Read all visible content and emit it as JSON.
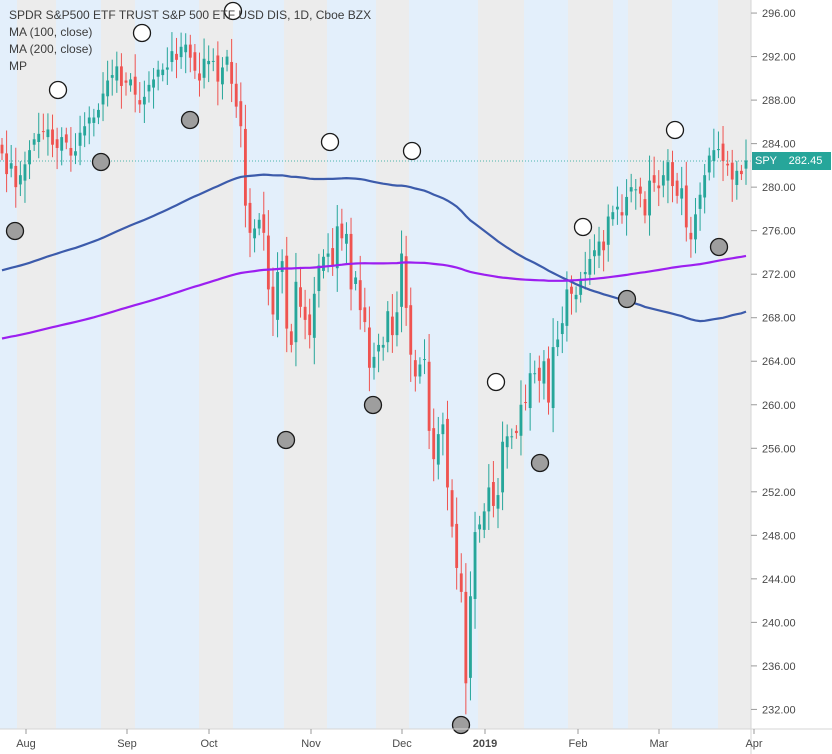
{
  "legend": {
    "title": "SPDR S&P500 ETF TRUST S&P 500 ETF USD DIS, 1D, Cboe BZX",
    "ma100": "MA (100, close)",
    "ma200": "MA (200, close)",
    "mp": "MP"
  },
  "price_tag": {
    "symbol": "SPY",
    "value": "282.45"
  },
  "colors": {
    "up": "#26a69a",
    "down": "#ef5350",
    "ma100": "#3c5bab",
    "ma200": "#9c1ff0",
    "band_light": "#e3effb",
    "band_gray": "#ececec",
    "last_price_line": "#26a69a"
  },
  "chart_data": {
    "type": "candlestick",
    "ylim": [
      230.2,
      297.2
    ],
    "y_ticks": [
      "232.00",
      "236.00",
      "240.00",
      "244.00",
      "248.00",
      "252.00",
      "256.00",
      "260.00",
      "264.00",
      "268.00",
      "272.00",
      "276.00",
      "280.00",
      "284.00",
      "288.00",
      "292.00",
      "296.00"
    ],
    "x_ticks": [
      {
        "label": "Aug",
        "bold": false
      },
      {
        "label": "Sep",
        "bold": false
      },
      {
        "label": "Oct",
        "bold": false
      },
      {
        "label": "Nov",
        "bold": false
      },
      {
        "label": "Dec",
        "bold": false
      },
      {
        "label": "2019",
        "bold": true
      },
      {
        "label": "Feb",
        "bold": false
      },
      {
        "label": "Mar",
        "bold": false
      },
      {
        "label": "Apr",
        "bold": false
      }
    ],
    "last_price": 282.45,
    "close": [
      283.1,
      281.2,
      282.2,
      280.0,
      281.1,
      282.1,
      283.4,
      284.4,
      284.9,
      285.1,
      285.3,
      283.9,
      283.6,
      284.6,
      284.1,
      282.9,
      283.3,
      285.0,
      285.6,
      286.4,
      286.4,
      287.1,
      288.6,
      289.8,
      290.3,
      291.1,
      289.3,
      289.6,
      289.9,
      288.5,
      287.6,
      288.3,
      289.4,
      289.9,
      290.8,
      290.8,
      291.0,
      292.5,
      291.7,
      292.9,
      293.1,
      291.9,
      290.7,
      289.8,
      291.8,
      291.6,
      291.6,
      289.7,
      291.0,
      292.0,
      289.5,
      287.4,
      285.6,
      278.3,
      275.8,
      276.2,
      277.0,
      275.8,
      270.6,
      268.3,
      272.2,
      273.2,
      267.0,
      265.5,
      271.3,
      269.0,
      267.8,
      266.4,
      270.2,
      272.8,
      273.6,
      273.9,
      272.8,
      276.4,
      275.3,
      275.7,
      270.6,
      271.7,
      268.7,
      267.6,
      263.4,
      264.4,
      265.5,
      265.5,
      268.6,
      266.4,
      268.5,
      273.9,
      268.9,
      264.6,
      262.6,
      263.7,
      264.2,
      257.6,
      255.0,
      257.3,
      258.2,
      252.4,
      248.8,
      245.0,
      242.8,
      234.4,
      242.4,
      248.3,
      249.0,
      250.2,
      252.4,
      250.7,
      251.7,
      256.6,
      257.1,
      257.1,
      257.4,
      260.0,
      260.2,
      262.9,
      262.9,
      262.2,
      264.0,
      260.2,
      265.3,
      266.0,
      267.5,
      270.6,
      270.2,
      270.1,
      271.5,
      272.2,
      273.4,
      274.2,
      275.0,
      274.2,
      277.3,
      277.7,
      278.2,
      277.4,
      279.1,
      280.0,
      279.8,
      279.4,
      277.4,
      280.6,
      280.4,
      279.9,
      281.1,
      282.3,
      280.1,
      279.2,
      279.9,
      276.3,
      275.2,
      277.5,
      279.3,
      281.1,
      282.9,
      283.4,
      283.5,
      282.4,
      282.0,
      280.7,
      281.5,
      281.2,
      282.45
    ]
  }
}
